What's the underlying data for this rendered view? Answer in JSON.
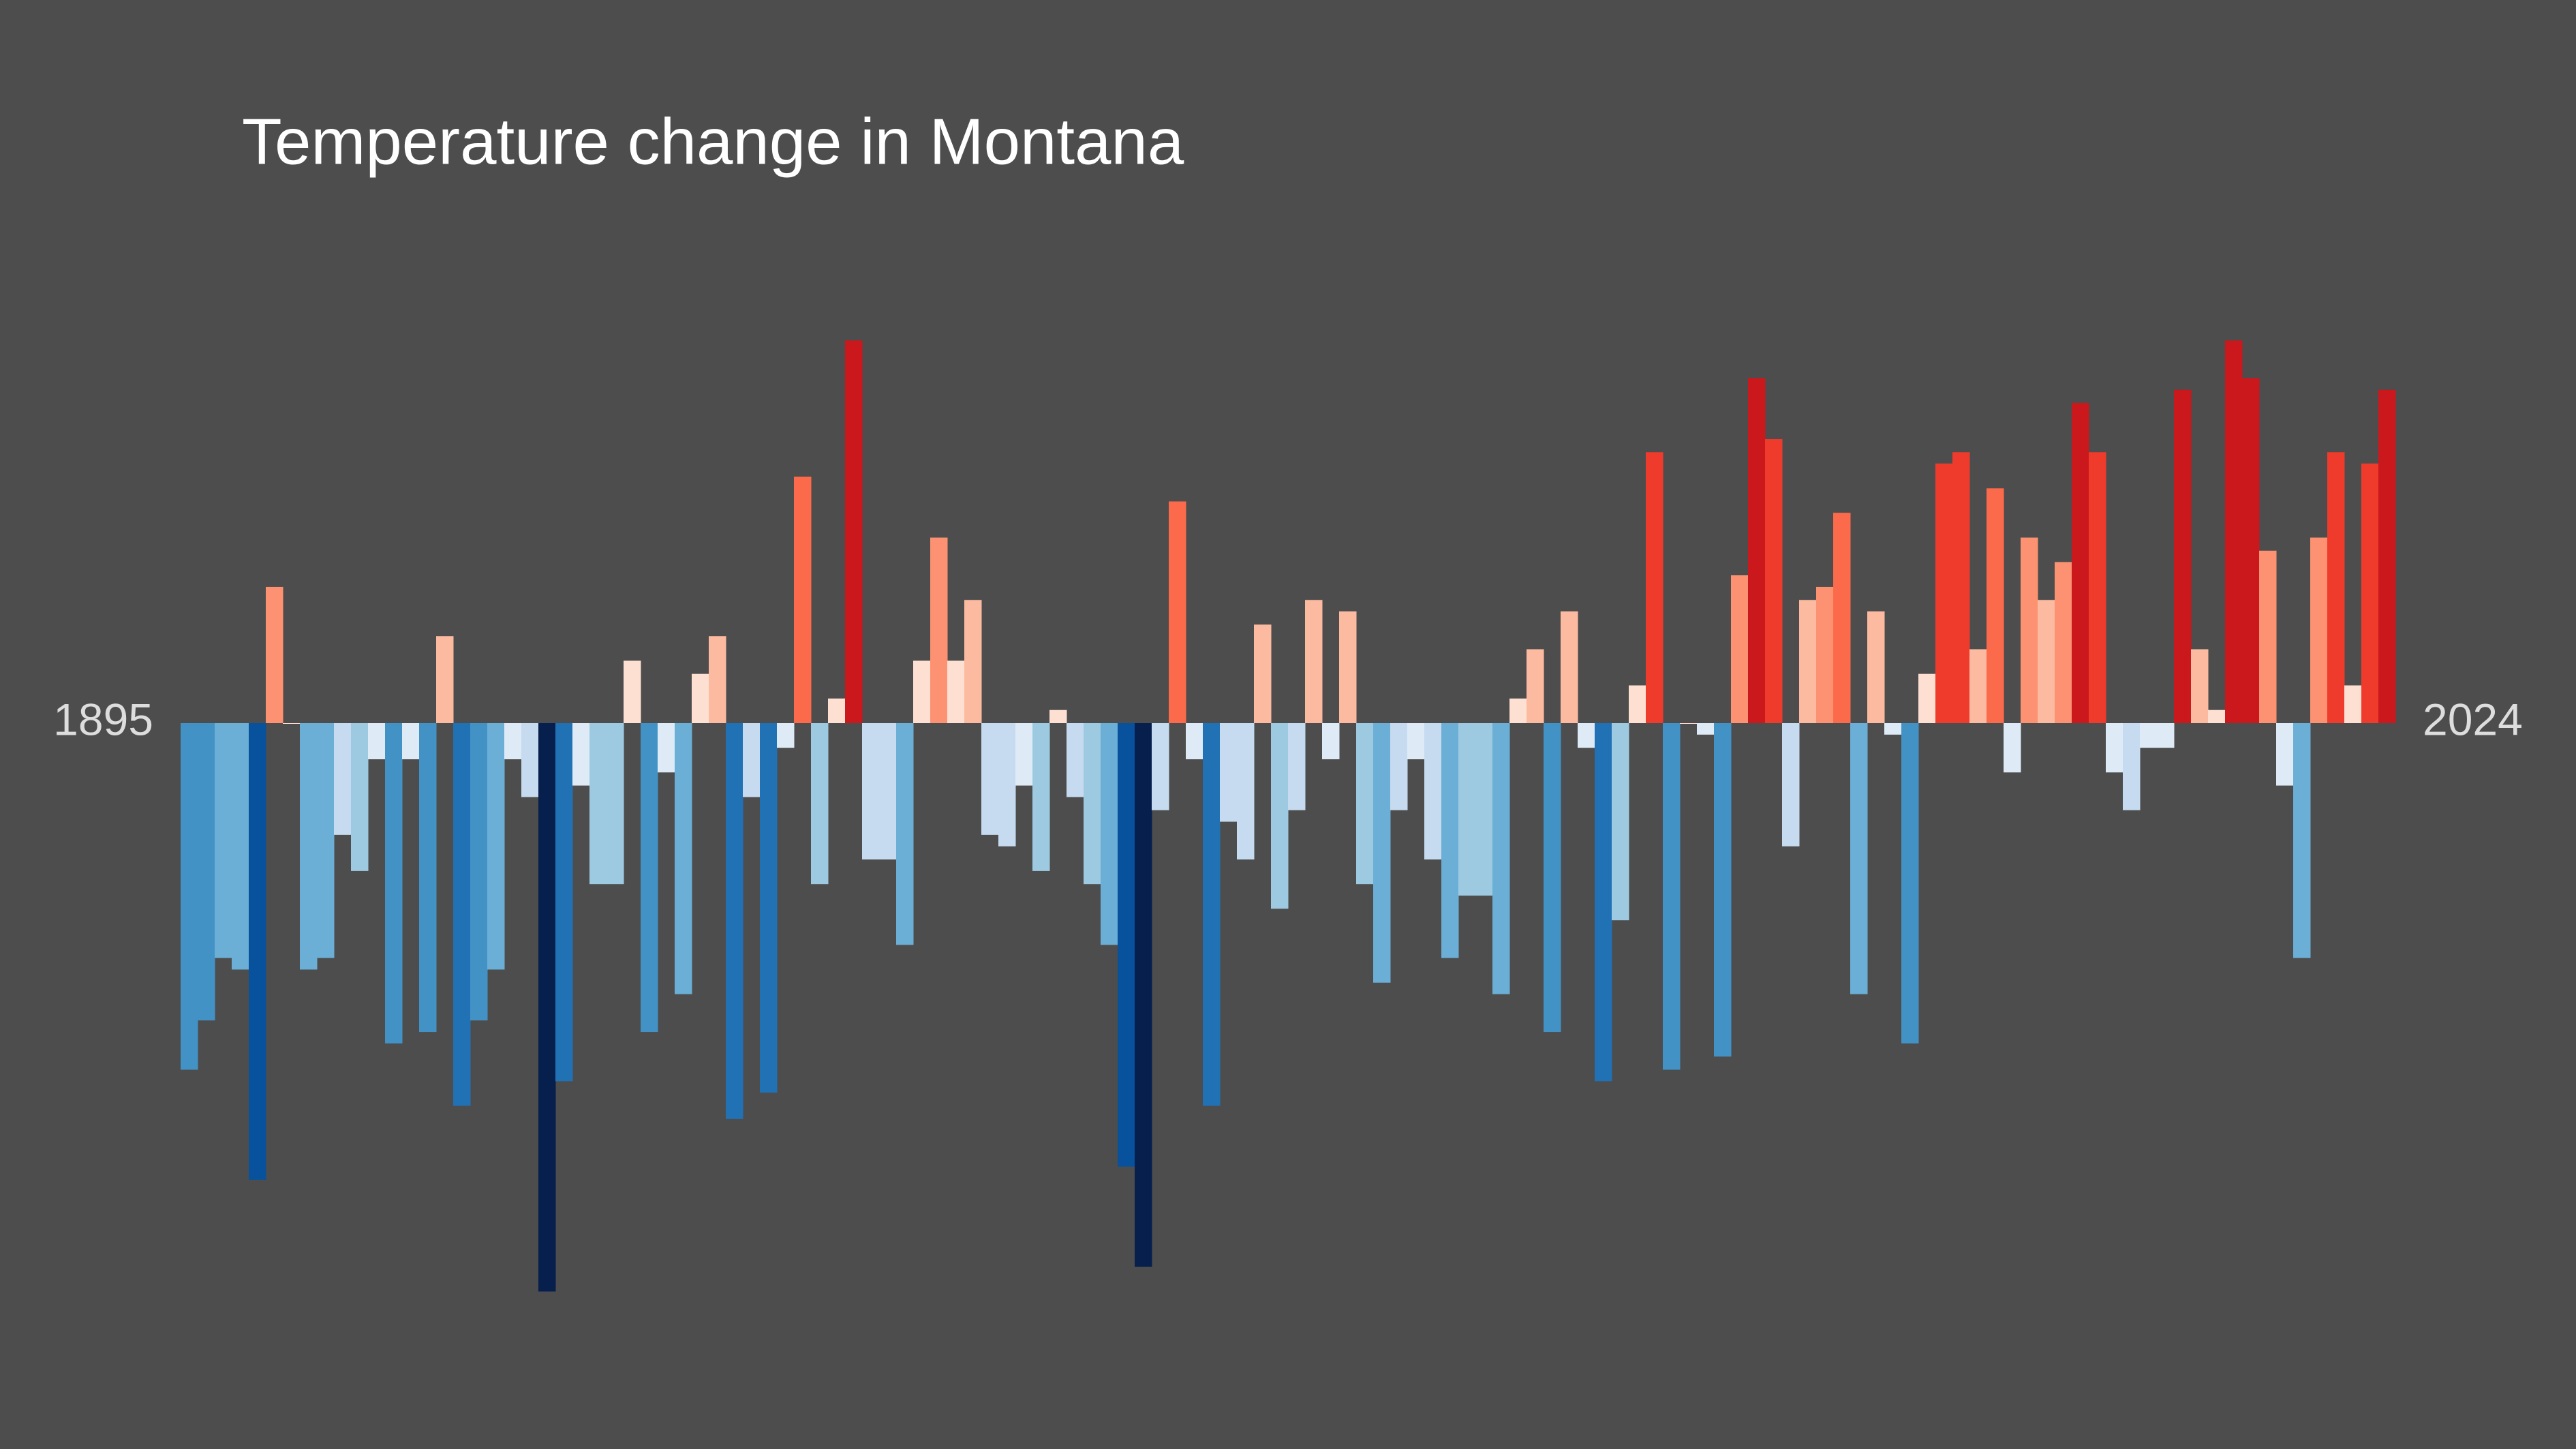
{
  "chart_data": {
    "type": "bar",
    "title": "Temperature change in Montana",
    "categories": [
      "1895",
      null,
      null,
      null,
      null,
      null,
      null,
      null,
      null,
      null,
      null,
      null,
      null,
      null,
      null,
      null,
      null,
      null,
      null,
      null,
      null,
      null,
      null,
      null,
      null,
      null,
      null,
      null,
      null,
      null,
      null,
      null,
      null,
      null,
      null,
      null,
      null,
      null,
      null,
      null,
      null,
      null,
      null,
      null,
      null,
      null,
      null,
      null,
      null,
      null,
      null,
      null,
      null,
      null,
      null,
      null,
      null,
      null,
      null,
      null,
      null,
      null,
      null,
      null,
      null,
      null,
      null,
      null,
      null,
      null,
      null,
      null,
      null,
      null,
      null,
      null,
      null,
      null,
      null,
      null,
      null,
      null,
      null,
      null,
      null,
      null,
      null,
      null,
      null,
      null,
      null,
      null,
      null,
      null,
      null,
      null,
      null,
      null,
      null,
      null,
      null,
      null,
      null,
      null,
      null,
      null,
      null,
      null,
      null,
      null,
      null,
      null,
      null,
      null,
      null,
      null,
      null,
      null,
      null,
      null,
      null,
      null,
      null,
      null,
      null,
      null,
      null,
      null,
      null,
      "2024"
    ],
    "values": [
      -2.11,
      -1.81,
      -1.43,
      -1.5,
      -2.78,
      0.83,
      0,
      -1.5,
      -1.43,
      -0.68,
      -0.9,
      -0.22,
      -1.95,
      -0.22,
      -1.88,
      0.53,
      -2.33,
      -1.81,
      -1.5,
      -0.22,
      -0.45,
      -3.46,
      -2.18,
      -0.38,
      -0.98,
      -0.98,
      0.38,
      -1.88,
      -0.3,
      -1.65,
      0.3,
      0.53,
      -2.41,
      -0.45,
      -2.25,
      -0.15,
      1.5,
      -0.98,
      0.15,
      2.33,
      -0.83,
      -0.83,
      -1.35,
      0.38,
      1.13,
      0.38,
      0.75,
      -0.68,
      -0.75,
      -0.38,
      -0.9,
      0.08,
      -0.45,
      -0.98,
      -1.35,
      -2.7,
      -3.31,
      -0.53,
      1.35,
      -0.22,
      -2.33,
      -0.6,
      -0.83,
      0.6,
      -1.13,
      -0.53,
      0.75,
      -0.22,
      0.68,
      -0.98,
      -1.58,
      -0.53,
      -0.22,
      -0.83,
      -1.43,
      -1.05,
      -1.05,
      -1.65,
      0.15,
      0.45,
      -1.88,
      0.68,
      -0.15,
      -2.18,
      -1.2,
      0.23,
      1.65,
      -2.11,
      0,
      -0.07,
      -2.03,
      0.9,
      2.1,
      1.73,
      -0.75,
      0.75,
      0.83,
      1.28,
      -1.65,
      0.68,
      -0.07,
      -1.95,
      0.3,
      1.58,
      1.65,
      0.45,
      1.43,
      -0.3,
      1.13,
      0.75,
      0.98,
      1.95,
      1.65,
      -0.3,
      -0.53,
      -0.15,
      -0.15,
      2.03,
      0.45,
      0.08,
      2.33,
      2.1,
      1.05,
      -0.38,
      -1.43,
      1.13,
      1.65,
      0.23,
      1.58,
      2.03
    ],
    "colormap": {
      "negative": [
        "#deebf7",
        "#c6dbef",
        "#9ecae1",
        "#6baed6",
        "#4292c6",
        "#2171b5",
        "#08519c",
        "#061f4d"
      ],
      "positive": [
        "#fee0d2",
        "#fcbba1",
        "#fc9272",
        "#fb6a4a",
        "#ef3b2c",
        "#cb181d"
      ]
    }
  }
}
